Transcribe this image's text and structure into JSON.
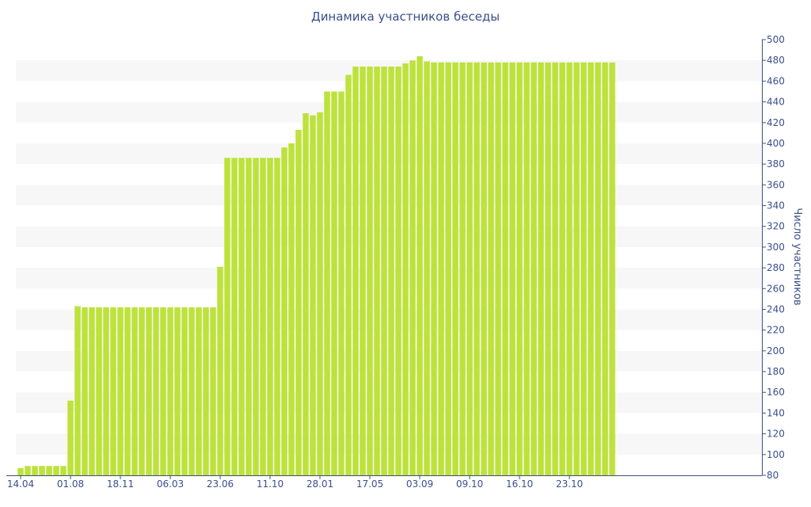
{
  "chart_data": {
    "type": "bar",
    "title": "Динамика участников беседы",
    "xlabel": "",
    "ylabel": "Число участников",
    "ylim": [
      80,
      500
    ],
    "yticks": [
      80,
      100,
      120,
      140,
      160,
      180,
      200,
      220,
      240,
      260,
      280,
      300,
      320,
      340,
      360,
      380,
      400,
      420,
      440,
      460,
      480,
      500
    ],
    "grid": "alternating horizontal bands",
    "y_axis_position": "right",
    "x_tick_labels": [
      {
        "label": "14.04",
        "index": 0
      },
      {
        "label": "01.08",
        "index": 7
      },
      {
        "label": "18.11",
        "index": 14
      },
      {
        "label": "06.03",
        "index": 21
      },
      {
        "label": "23.06",
        "index": 28
      },
      {
        "label": "11.10",
        "index": 35
      },
      {
        "label": "28.01",
        "index": 42
      },
      {
        "label": "17.05",
        "index": 49
      },
      {
        "label": "03.09",
        "index": 56
      },
      {
        "label": "09.10",
        "index": 63
      },
      {
        "label": "16.10",
        "index": 70
      },
      {
        "label": "23.10",
        "index": 77
      }
    ],
    "values": [
      87,
      89,
      89,
      89,
      89,
      89,
      89,
      152,
      243,
      242,
      242,
      242,
      242,
      242,
      242,
      242,
      242,
      242,
      242,
      242,
      242,
      242,
      242,
      242,
      242,
      242,
      242,
      242,
      281,
      386,
      386,
      386,
      386,
      386,
      386,
      386,
      386,
      396,
      400,
      413,
      429,
      427,
      430,
      450,
      450,
      450,
      466,
      474,
      474,
      474,
      474,
      474,
      474,
      474,
      477,
      480,
      484,
      479,
      478,
      478,
      478,
      478,
      478,
      478,
      478,
      478,
      478,
      478,
      478,
      478,
      478,
      478,
      478,
      478,
      478,
      478,
      478,
      478,
      478,
      478,
      478,
      478,
      478,
      478
    ],
    "colors": {
      "bar": "#bde23b",
      "band": "#f7f7f7",
      "axis": "#3a4f8c",
      "text": "#3a4f8c"
    }
  }
}
